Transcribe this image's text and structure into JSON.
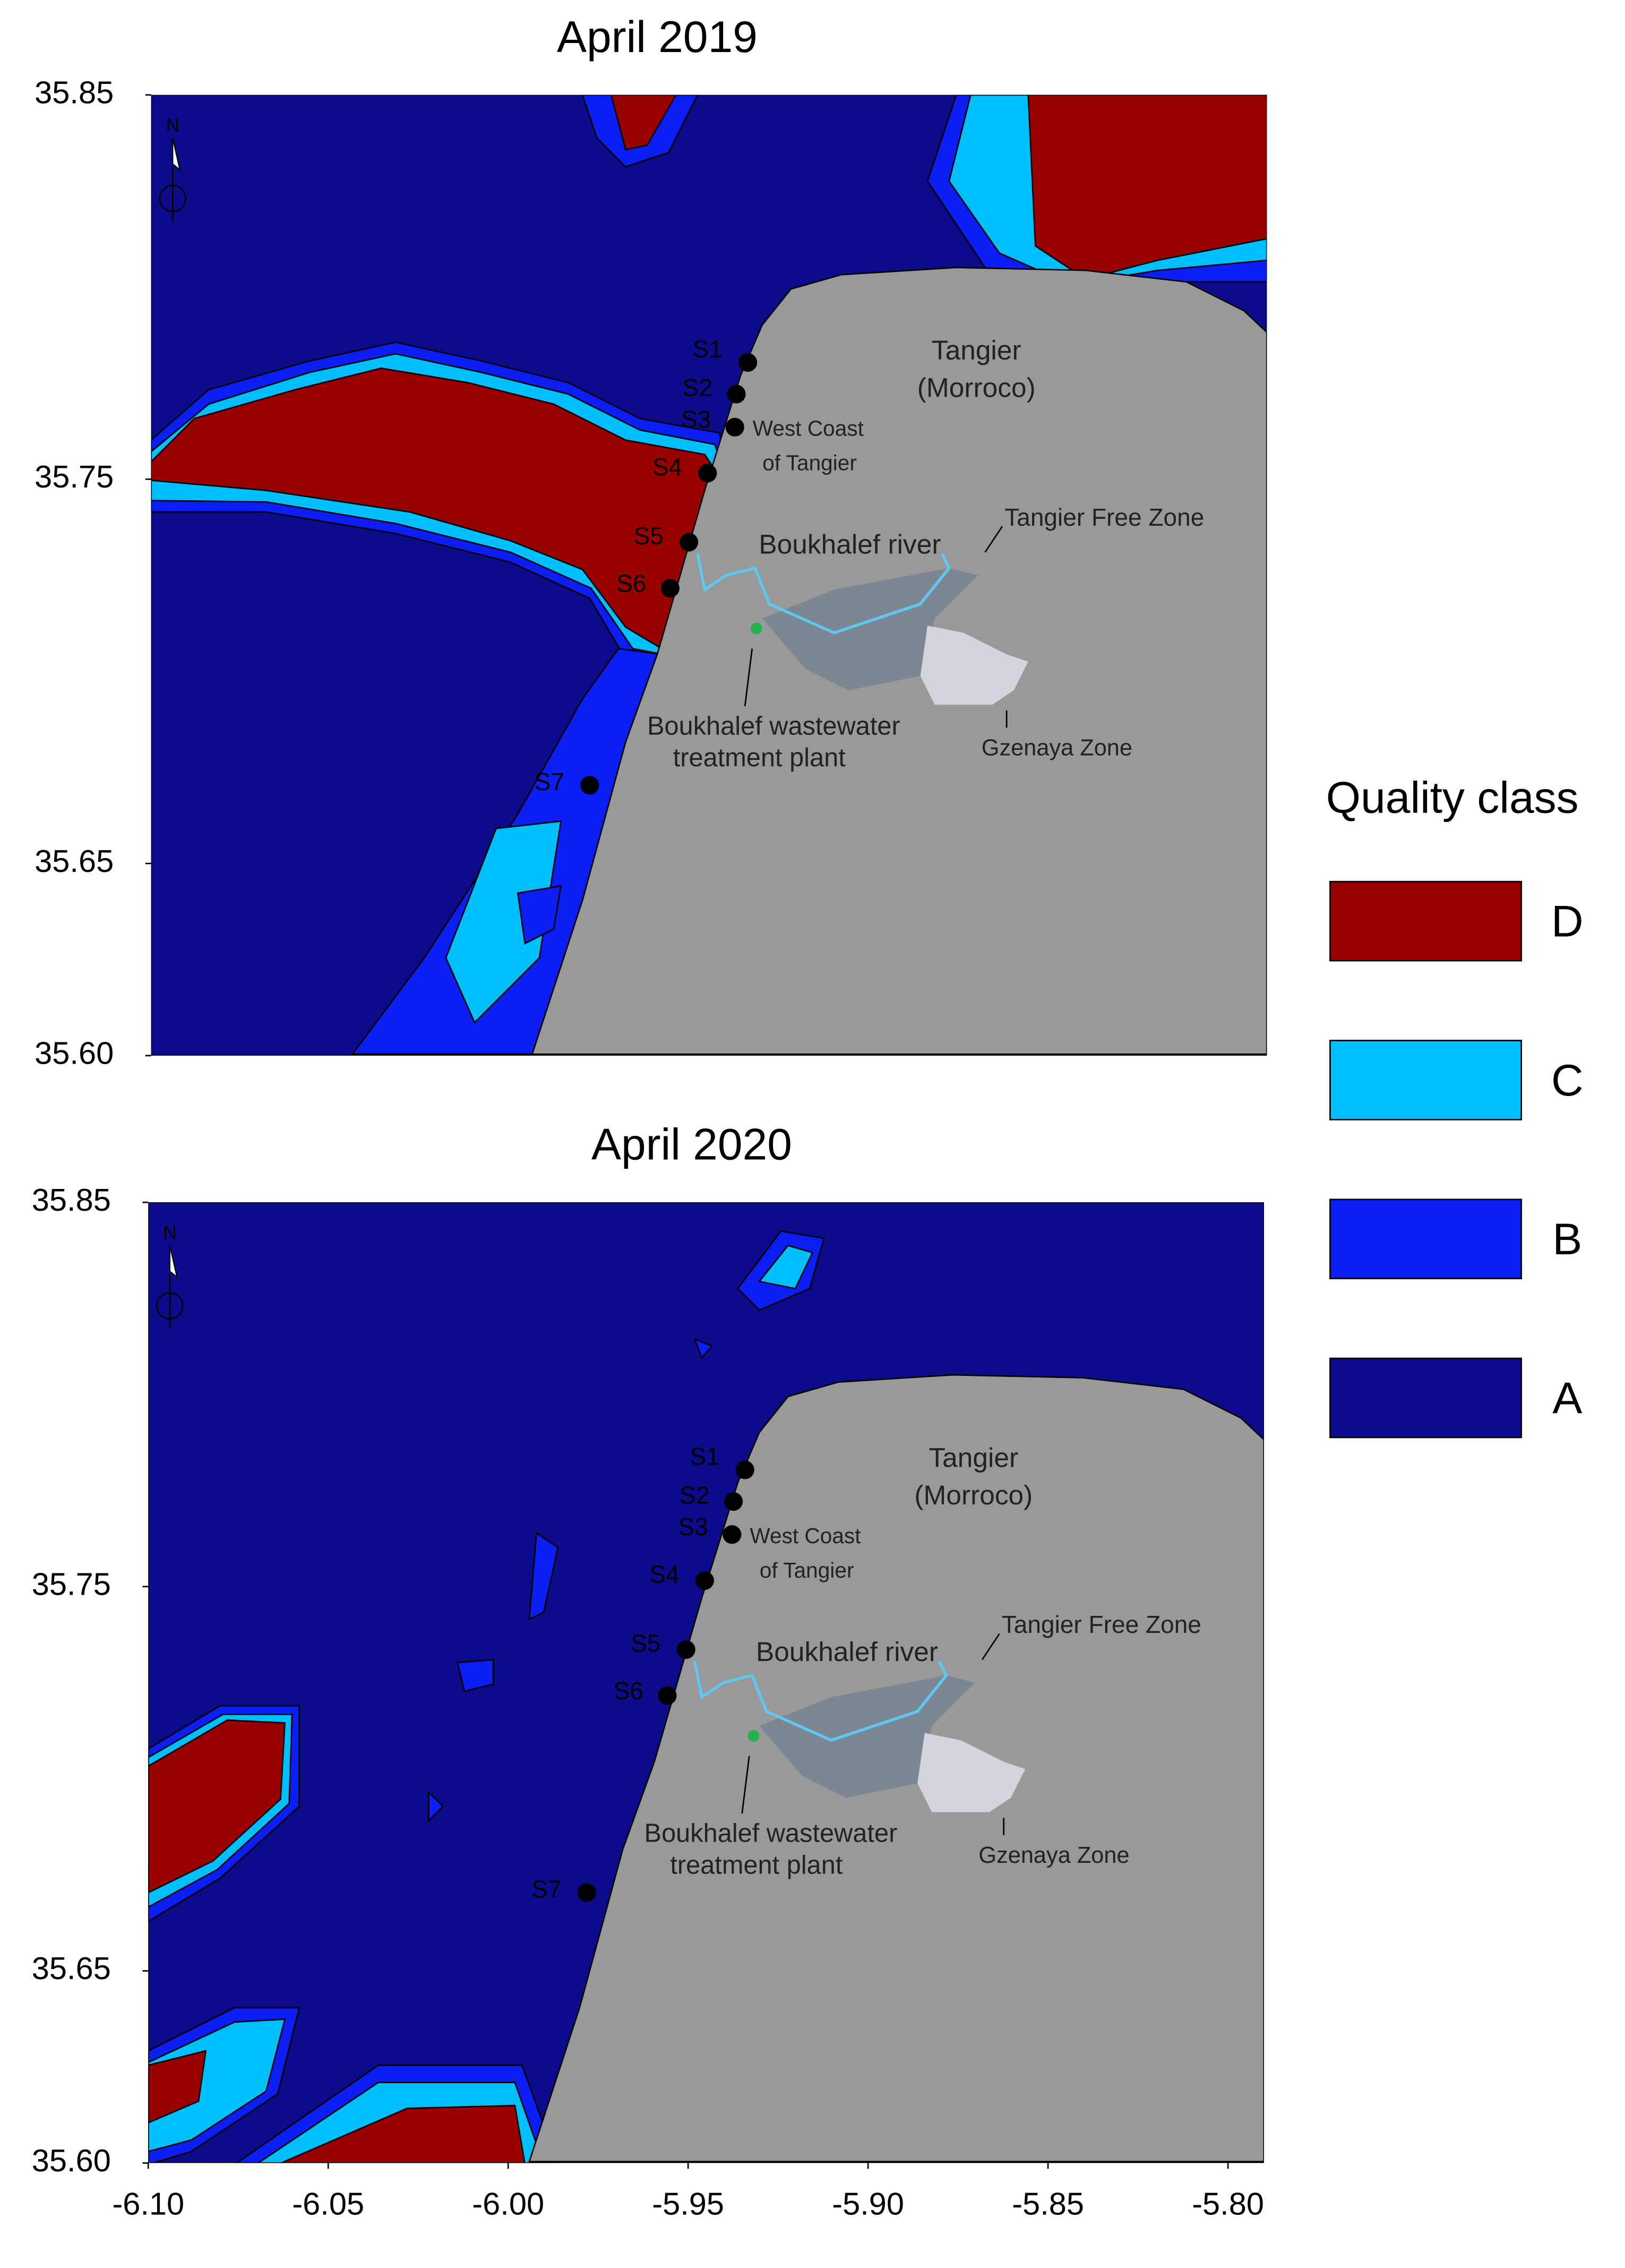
{
  "panels": [
    {
      "title": "April 2019",
      "north": "N",
      "stations": [
        "S1",
        "S2",
        "S3",
        "S4",
        "S5",
        "S6",
        "S7"
      ],
      "places": [
        "Tangier",
        "(Morroco)",
        "West Coast",
        "of Tangier",
        "Boukhalef river",
        "Tangier Free Zone",
        "Boukhalef wastewater",
        "treatment plant",
        "Gzenaya Zone"
      ]
    },
    {
      "title": "April 2020",
      "north": "N",
      "stations": [
        "S1",
        "S2",
        "S3",
        "S4",
        "S5",
        "S6",
        "S7"
      ],
      "places": [
        "Tangier",
        "(Morroco)",
        "West Coast",
        "of Tangier",
        "Boukhalef river",
        "Tangier Free Zone",
        "Boukhalef wastewater",
        "treatment plant",
        "Gzenaya Zone"
      ]
    }
  ],
  "axes": {
    "ylim": [
      35.6,
      35.85
    ],
    "yticks": [
      35.85,
      35.75,
      35.65,
      {
        "value": 35.6,
        "label": "35.60"
      }
    ],
    "xlim": [
      -6.1,
      -5.79
    ],
    "xticks": [
      {
        "value": -6.1,
        "label": "-6.10"
      },
      -6.05,
      {
        "value": -6,
        "label": "-6.00"
      },
      -5.95,
      {
        "value": -5.9,
        "label": "-5.90"
      },
      -5.85,
      {
        "value": -5.8,
        "label": "-5.80"
      }
    ]
  },
  "legend": {
    "title": "Quality class",
    "items": [
      {
        "label": "D",
        "color": "#990000"
      },
      {
        "label": "C",
        "color": "#00bfff"
      },
      {
        "label": "B",
        "color": "#0a1ef5"
      },
      {
        "label": "A",
        "color": "#0c0b8c"
      }
    ]
  }
}
